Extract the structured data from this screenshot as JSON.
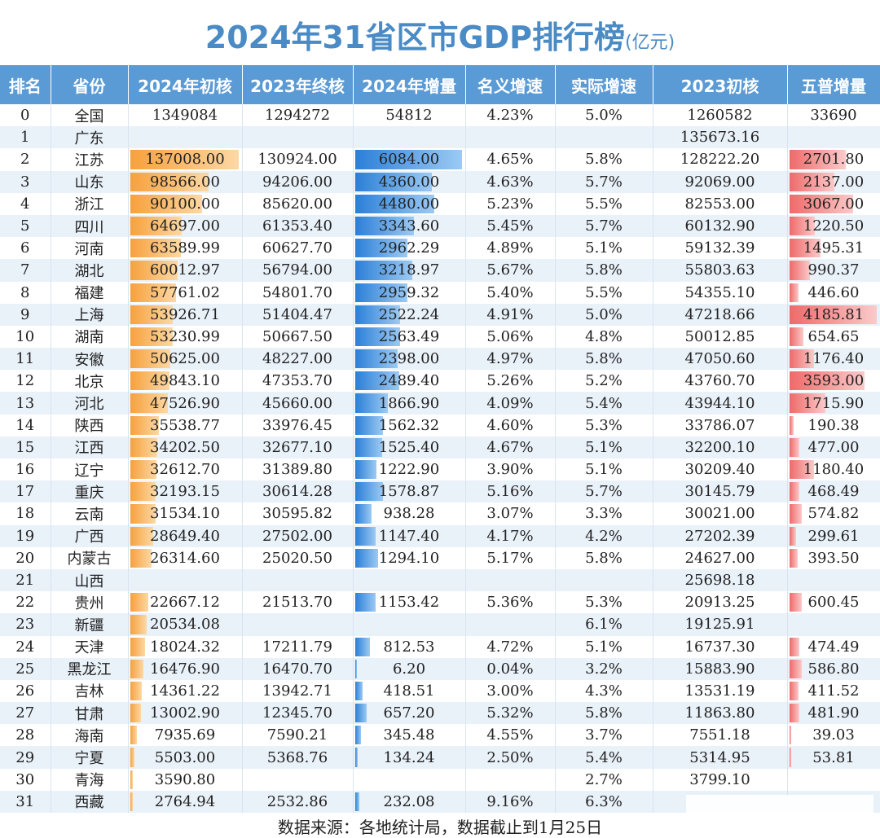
{
  "title": "2024年31省区市GDP排行榜",
  "unit": "(亿元)",
  "headers": [
    "排名",
    "省份",
    "2024年初核",
    "2023年终核",
    "2024年增量",
    "名义增速",
    "实际增速",
    "2023初核",
    "五普增量"
  ],
  "rows": [
    [
      "0",
      "全国",
      "1349084",
      "1294272",
      "54812",
      "4.23%",
      "5.0%",
      "1260582",
      "33690"
    ],
    [
      "1",
      "广东",
      "",
      "",
      "",
      "",
      "",
      "135673.16",
      ""
    ],
    [
      "2",
      "江苏",
      "137008.00",
      "130924.00",
      "6084.00",
      "4.65%",
      "5.8%",
      "128222.20",
      "2701.80"
    ],
    [
      "3",
      "山东",
      "98566.00",
      "94206.00",
      "4360.00",
      "4.63%",
      "5.7%",
      "92069.00",
      "2137.00"
    ],
    [
      "4",
      "浙江",
      "90100.00",
      "85620.00",
      "4480.00",
      "5.23%",
      "5.5%",
      "82553.00",
      "3067.00"
    ],
    [
      "5",
      "四川",
      "64697.00",
      "61353.40",
      "3343.60",
      "5.45%",
      "5.7%",
      "60132.90",
      "1220.50"
    ],
    [
      "6",
      "河南",
      "63589.99",
      "60627.70",
      "2962.29",
      "4.89%",
      "5.1%",
      "59132.39",
      "1495.31"
    ],
    [
      "7",
      "湖北",
      "60012.97",
      "56794.00",
      "3218.97",
      "5.67%",
      "5.8%",
      "55803.63",
      "990.37"
    ],
    [
      "8",
      "福建",
      "57761.02",
      "54801.70",
      "2959.32",
      "5.40%",
      "5.5%",
      "54355.10",
      "446.60"
    ],
    [
      "9",
      "上海",
      "53926.71",
      "51404.47",
      "2522.24",
      "4.91%",
      "5.0%",
      "47218.66",
      "4185.81"
    ],
    [
      "10",
      "湖南",
      "53230.99",
      "50667.50",
      "2563.49",
      "5.06%",
      "4.8%",
      "50012.85",
      "654.65"
    ],
    [
      "11",
      "安徽",
      "50625.00",
      "48227.00",
      "2398.00",
      "4.97%",
      "5.8%",
      "47050.60",
      "1176.40"
    ],
    [
      "12",
      "北京",
      "49843.10",
      "47353.70",
      "2489.40",
      "5.26%",
      "5.2%",
      "43760.70",
      "3593.00"
    ],
    [
      "13",
      "河北",
      "47526.90",
      "45660.00",
      "1866.90",
      "4.09%",
      "5.4%",
      "43944.10",
      "1715.90"
    ],
    [
      "14",
      "陕西",
      "35538.77",
      "33976.45",
      "1562.32",
      "4.60%",
      "5.3%",
      "33786.07",
      "190.38"
    ],
    [
      "15",
      "江西",
      "34202.50",
      "32677.10",
      "1525.40",
      "4.67%",
      "5.1%",
      "32200.10",
      "477.00"
    ],
    [
      "16",
      "辽宁",
      "32612.70",
      "31389.80",
      "1222.90",
      "3.90%",
      "5.1%",
      "30209.40",
      "1180.40"
    ],
    [
      "17",
      "重庆",
      "32193.15",
      "30614.28",
      "1578.87",
      "5.16%",
      "5.7%",
      "30145.79",
      "468.49"
    ],
    [
      "18",
      "云南",
      "31534.10",
      "30595.82",
      "938.28",
      "3.07%",
      "3.3%",
      "30021.00",
      "574.82"
    ],
    [
      "19",
      "广西",
      "28649.40",
      "27502.00",
      "1147.40",
      "4.17%",
      "4.2%",
      "27202.39",
      "299.61"
    ],
    [
      "20",
      "内蒙古",
      "26314.60",
      "25020.50",
      "1294.10",
      "5.17%",
      "5.8%",
      "24627.00",
      "393.50"
    ],
    [
      "21",
      "山西",
      "",
      "",
      "",
      "",
      "",
      "25698.18",
      ""
    ],
    [
      "22",
      "贵州",
      "22667.12",
      "21513.70",
      "1153.42",
      "5.36%",
      "5.3%",
      "20913.25",
      "600.45"
    ],
    [
      "23",
      "新疆",
      "20534.08",
      "",
      "",
      "",
      "6.1%",
      "19125.91",
      ""
    ],
    [
      "24",
      "天津",
      "18024.32",
      "17211.79",
      "812.53",
      "4.72%",
      "5.1%",
      "16737.30",
      "474.49"
    ],
    [
      "25",
      "黑龙江",
      "16476.90",
      "16470.70",
      "6.20",
      "0.04%",
      "3.2%",
      "15883.90",
      "586.80"
    ],
    [
      "26",
      "吉林",
      "14361.22",
      "13942.71",
      "418.51",
      "3.00%",
      "4.3%",
      "13531.19",
      "411.52"
    ],
    [
      "27",
      "甘肃",
      "13002.90",
      "12345.70",
      "657.20",
      "5.32%",
      "5.8%",
      "11863.80",
      "481.90"
    ],
    [
      "28",
      "海南",
      "7935.69",
      "7590.21",
      "345.48",
      "4.55%",
      "3.7%",
      "7551.18",
      "39.03"
    ],
    [
      "29",
      "宁夏",
      "5503.00",
      "5368.76",
      "134.24",
      "2.50%",
      "5.4%",
      "5314.95",
      "53.81"
    ],
    [
      "30",
      "青海",
      "3590.80",
      "",
      "",
      "",
      "2.7%",
      "3799.10",
      ""
    ],
    [
      "31",
      "西藏",
      "2764.94",
      "2532.86",
      "232.08",
      "9.16%",
      "6.3%",
      "",
      ""
    ]
  ],
  "colors": {
    "header": "#5b9bd5",
    "title": "#4a8bc6",
    "bar_gdp": "#f7a13c",
    "bar_increase": "#2b7fd8",
    "bar_census": "#ef6a6a"
  },
  "footer": "数据来源：各地统计局，数据截止到1月25日"
}
